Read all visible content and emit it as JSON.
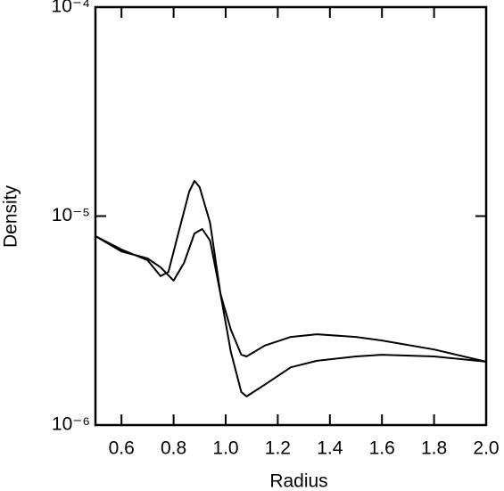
{
  "chart_data": {
    "type": "line",
    "xlabel": "Radius",
    "ylabel": "Density",
    "xlim": [
      0.5,
      2.0
    ],
    "xticks": [
      0.6,
      0.8,
      {
        "value": 1,
        "label": "1.0"
      },
      1.2,
      1.4,
      1.6,
      1.8,
      {
        "value": 2,
        "label": "2.0"
      }
    ],
    "ylim": [
      1e-06,
      0.0001
    ],
    "log_y": true,
    "yticks": [
      {
        "value": 1e-06,
        "label": "10⁻⁶"
      },
      {
        "value": 1e-05,
        "label": "10⁻⁵"
      },
      {
        "value": 0.0001,
        "label": "10⁻⁴"
      }
    ],
    "series": [
      {
        "color": "#000000",
        "x": [
          0.5,
          0.6,
          0.7,
          0.75,
          0.78,
          0.82,
          0.86,
          0.88,
          0.9,
          0.94,
          0.98,
          1.02,
          1.06,
          1.08,
          1.15,
          1.25,
          1.35,
          1.5,
          1.6,
          1.8,
          2.0
        ],
        "values": [
          8.02e-06,
          6.92e-06,
          6.15e-06,
          5.16e-06,
          5.41e-06,
          8.42e-06,
          1.31e-05,
          1.474e-05,
          1.376e-05,
          9.29e-06,
          4.24e-06,
          2.86e-06,
          2.17e-06,
          2.13e-06,
          2.4e-06,
          2.64e-06,
          2.72e-06,
          2.64e-06,
          2.54e-06,
          2.3e-06,
          2.01e-06
        ]
      },
      {
        "color": "#000000",
        "x": [
          0.5,
          0.6,
          0.7,
          0.75,
          0.8,
          0.84,
          0.88,
          0.91,
          0.94,
          0.98,
          1.02,
          1.06,
          1.08,
          1.15,
          1.25,
          1.35,
          1.5,
          1.6,
          1.8,
          2.0
        ],
        "values": [
          8.02e-06,
          6.78e-06,
          6.27e-06,
          5.69e-06,
          4.91e-06,
          5.97e-06,
          8.26e-06,
          8.67e-06,
          7.63e-06,
          4.24e-06,
          2.24e-06,
          1.44e-06,
          1.37e-06,
          1.56e-06,
          1.89e-06,
          2.03e-06,
          2.13e-06,
          2.17e-06,
          2.13e-06,
          2.01e-06
        ]
      }
    ]
  }
}
